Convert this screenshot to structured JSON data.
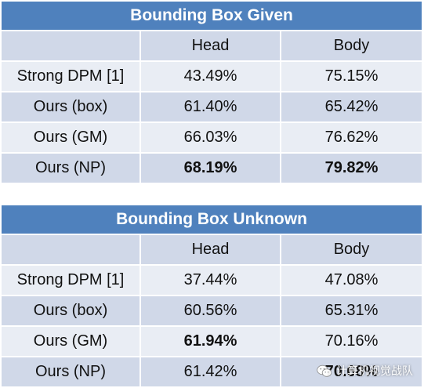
{
  "tables": [
    {
      "title": "Bounding Box Given",
      "headers": [
        "",
        "Head",
        "Body"
      ],
      "rows": [
        {
          "method": "Strong DPM [1]",
          "head": "43.49%",
          "body": "75.15%",
          "head_bold": false,
          "body_bold": false
        },
        {
          "method": "Ours (box)",
          "head": "61.40%",
          "body": "65.42%",
          "head_bold": false,
          "body_bold": false
        },
        {
          "method": "Ours (GM)",
          "head": "66.03%",
          "body": "76.62%",
          "head_bold": false,
          "body_bold": false
        },
        {
          "method": "Ours (NP)",
          "head": "68.19%",
          "body": "79.82%",
          "head_bold": true,
          "body_bold": true
        }
      ]
    },
    {
      "title": "Bounding Box Unknown",
      "headers": [
        "",
        "Head",
        "Body"
      ],
      "rows": [
        {
          "method": "Strong DPM [1]",
          "head": "37.44%",
          "body": "47.08%",
          "head_bold": false,
          "body_bold": false
        },
        {
          "method": "Ours (box)",
          "head": "60.56%",
          "body": "65.31%",
          "head_bold": false,
          "body_bold": false
        },
        {
          "method": "Ours (GM)",
          "head": "61.94%",
          "body": "70.16%",
          "head_bold": true,
          "body_bold": false
        },
        {
          "method": "Ours (NP)",
          "head": "61.42%",
          "body": "70.68%",
          "head_bold": false,
          "body_bold": true
        }
      ]
    }
  ],
  "watermark": {
    "text": "计算机视觉战队",
    "icon": "wechat-icon"
  },
  "colors": {
    "title_bg": "#4f81bd",
    "row_dark": "#d0d8e8",
    "row_light": "#e9edf4"
  }
}
